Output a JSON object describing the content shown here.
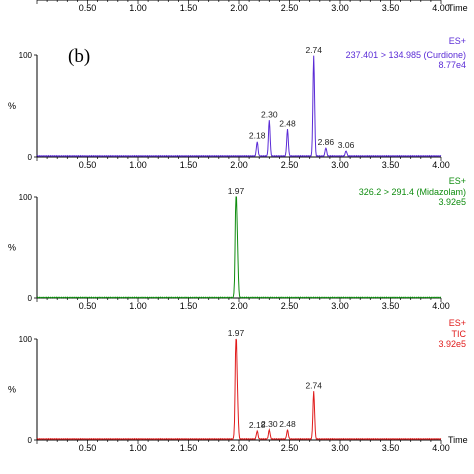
{
  "panel_label": "(b)",
  "colors": {
    "axis": "#000000",
    "purple": "#5a2bd6",
    "green": "#0f8c0f",
    "red": "#e01b1b"
  },
  "top_axis_fragment": {
    "ticks": [
      "0.50",
      "1.00",
      "1.50",
      "2.00",
      "2.50",
      "3.00",
      "3.50",
      "4.00"
    ],
    "unit_label": "Time"
  },
  "chart_data": [
    {
      "type": "line",
      "name": "purple",
      "header": {
        "mode": "ES+",
        "transition": "237.401 > 134.985 (Curdione)",
        "intensity": "8.77e4"
      },
      "y_tick_top": "100",
      "y_tick_bottom": "0",
      "y_unit": "%",
      "x_ticks": [
        "0.50",
        "1.00",
        "1.50",
        "2.00",
        "2.50",
        "3.00",
        "3.50",
        "4.00"
      ],
      "x_label": "",
      "xlim": [
        0,
        4
      ],
      "ylim": [
        0,
        100
      ],
      "baseline": 1,
      "peaks": [
        {
          "x": 2.18,
          "y": 14,
          "label": "2.18"
        },
        {
          "x": 2.3,
          "y": 35,
          "label": "2.30"
        },
        {
          "x": 2.48,
          "y": 26,
          "label": "2.48"
        },
        {
          "x": 2.74,
          "y": 98,
          "label": "2.74"
        },
        {
          "x": 2.86,
          "y": 8,
          "label": "2.86"
        },
        {
          "x": 3.06,
          "y": 5,
          "label": "3.06"
        }
      ]
    },
    {
      "type": "line",
      "name": "green",
      "header": {
        "mode": "ES+",
        "transition": "326.2 > 291.4 (Midazolam)",
        "intensity": "3.92e5"
      },
      "y_tick_top": "100",
      "y_tick_bottom": "0",
      "y_unit": "%",
      "x_ticks": [
        "0.50",
        "1.00",
        "1.50",
        "2.00",
        "2.50",
        "3.00",
        "3.50",
        "4.00"
      ],
      "x_label": "",
      "xlim": [
        0,
        4
      ],
      "ylim": [
        0,
        100
      ],
      "baseline": 0.5,
      "peaks": [
        {
          "x": 1.97,
          "y": 100,
          "label": "1.97"
        },
        {
          "x": 1.985,
          "y": 42,
          "label": ""
        }
      ]
    },
    {
      "type": "line",
      "name": "red",
      "header": {
        "mode": "ES+",
        "transition": "TIC",
        "intensity": "3.92e5"
      },
      "y_tick_top": "100",
      "y_tick_bottom": "0",
      "y_unit": "%",
      "x_ticks": [
        "0.50",
        "1.00",
        "1.50",
        "2.00",
        "2.50",
        "3.00",
        "3.50",
        "4.00"
      ],
      "x_label": "Time",
      "xlim": [
        0,
        4
      ],
      "ylim": [
        0,
        100
      ],
      "baseline": 1,
      "peaks": [
        {
          "x": 1.97,
          "y": 100,
          "label": "1.97"
        },
        {
          "x": 1.985,
          "y": 35,
          "label": ""
        },
        {
          "x": 2.18,
          "y": 8,
          "label": "2.18"
        },
        {
          "x": 2.3,
          "y": 9,
          "label": "2.30"
        },
        {
          "x": 2.48,
          "y": 9,
          "label": "2.48"
        },
        {
          "x": 2.74,
          "y": 47,
          "label": "2.74"
        }
      ]
    }
  ]
}
